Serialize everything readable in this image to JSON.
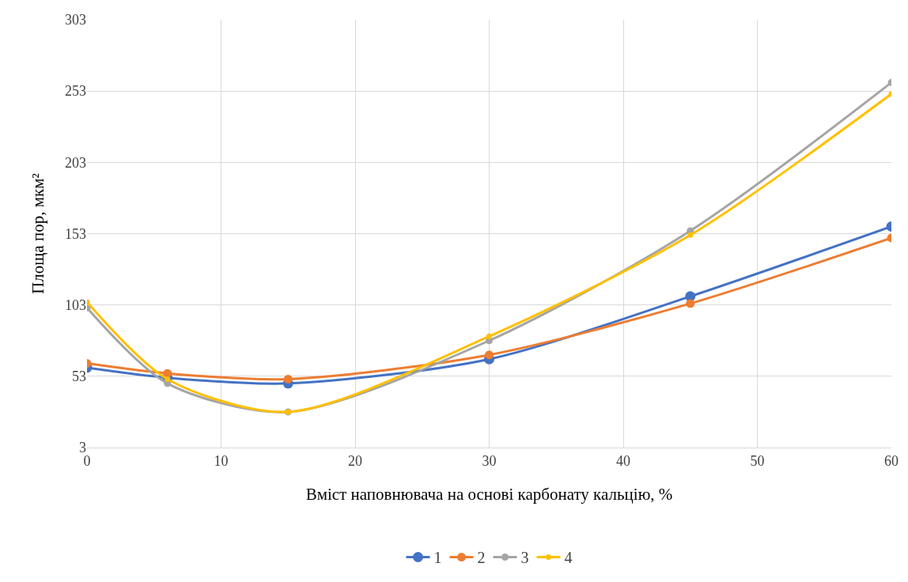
{
  "chart_data": {
    "type": "line",
    "xlabel": "Вміст наповнювача на основі карбонату кальцію, %",
    "ylabel": "Площа пор, мкм²",
    "x": [
      0,
      6,
      15,
      30,
      45,
      60
    ],
    "series": [
      {
        "name": "1",
        "color": "#4472c4",
        "values": [
          59,
          52,
          48,
          65,
          109,
          158
        ]
      },
      {
        "name": "2",
        "color": "#ed7d31",
        "values": [
          62,
          55,
          51,
          68,
          104,
          150
        ]
      },
      {
        "name": "3",
        "color": "#a5a5a5",
        "values": [
          101,
          48,
          28,
          78,
          155,
          259
        ]
      },
      {
        "name": "4",
        "color": "#ffc000",
        "values": [
          105,
          51,
          28,
          81,
          152,
          251
        ]
      }
    ],
    "xlim": [
      0,
      60
    ],
    "xticks": [
      0,
      10,
      20,
      30,
      40,
      50,
      60
    ],
    "ylim": [
      3,
      303
    ],
    "yticks": [
      3,
      53,
      103,
      153,
      203,
      253,
      303
    ],
    "grid": true,
    "legend": "bottom",
    "marker": "circle",
    "line_style": "solid"
  }
}
